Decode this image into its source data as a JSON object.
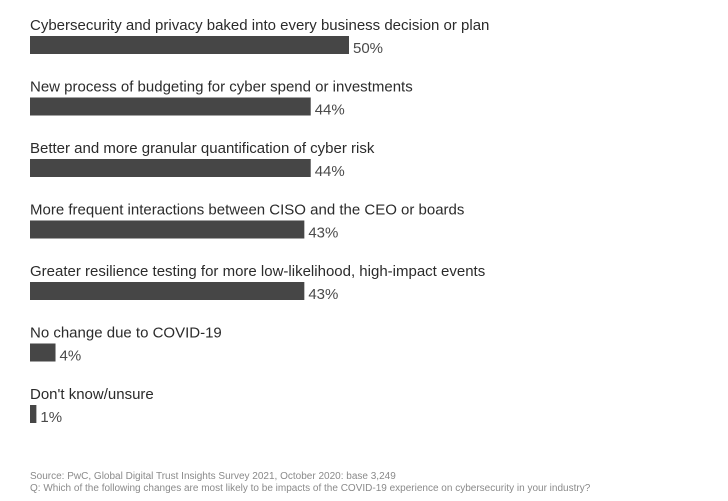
{
  "chart_data": {
    "type": "bar",
    "orientation": "horizontal",
    "categories": [
      "Cybersecurity and privacy baked into every business decision or plan",
      "New process of budgeting for cyber spend or investments",
      "Better and more granular quantification of cyber risk",
      "More frequent interactions between CISO and the CEO or boards",
      "Greater resilience testing for more low-likelihood, high-impact events",
      "No change due to COVID-19",
      "Don't know/unsure"
    ],
    "values": [
      50,
      44,
      44,
      43,
      43,
      4,
      1
    ],
    "value_labels": [
      "50%",
      "44%",
      "44%",
      "43%",
      "43%",
      "4%",
      "1%"
    ],
    "unit": "%",
    "xlim": [
      0,
      50
    ],
    "grid": false,
    "colors": {
      "bar": "#464646",
      "label": "#2b2b2b",
      "value": "#4a4a4a",
      "footnote": "#8a8a8a"
    }
  },
  "footnotes": {
    "source": "Source: PwC, Global Digital Trust Insights Survey 2021, October 2020: base 3,249",
    "question": "Q: Which of the following changes are most likely to be impacts of the COVID-19 experience on cybersecurity in your industry?"
  }
}
